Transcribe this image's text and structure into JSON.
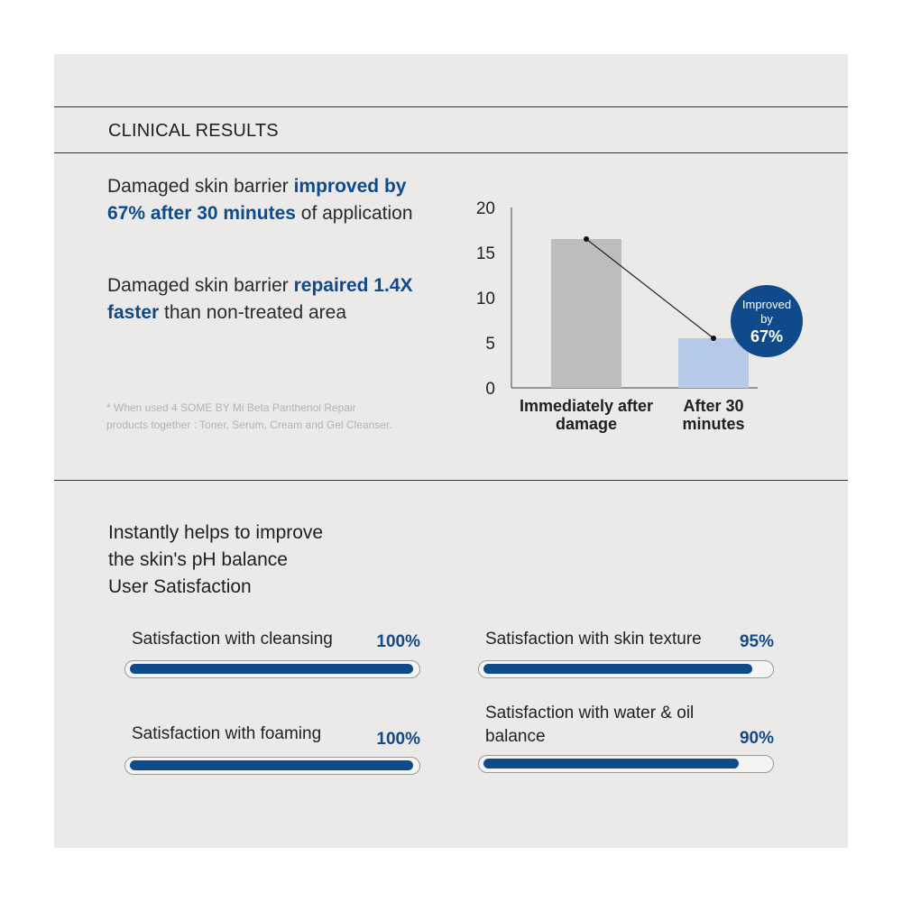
{
  "section_title": "CLINICAL RESULTS",
  "claims": [
    {
      "pre": "Damaged skin barrier ",
      "bold": "improved by 67% after 30 minutes",
      "post": " of application"
    },
    {
      "pre": "Damaged skin barrier ",
      "bold": "repaired 1.4X faster",
      "post": " than non-treated area"
    }
  ],
  "footnote": "* When used 4 SOME BY Mi Beta Panthenol Repair products together : Toner, Serum, Cream and Gel Cleanser.",
  "chart_data": {
    "type": "bar",
    "categories": [
      "Immediately after damage",
      "After 30 minutes"
    ],
    "values": [
      16.5,
      5.5
    ],
    "ylim": [
      0,
      20
    ],
    "yticks": [
      0,
      5,
      10,
      15,
      20
    ],
    "colors": [
      "#bdbdbd",
      "#b7c9e8"
    ],
    "connector_line": true,
    "badge": {
      "line1": "Improved",
      "line2": "by",
      "line3": "67%",
      "color": "#0f4b8a"
    },
    "grid": false,
    "title": "",
    "xlabel": "",
    "ylabel": ""
  },
  "satisfaction": {
    "heading_lines": [
      "Instantly helps to improve",
      "the skin's pH balance",
      "User Satisfaction"
    ],
    "items": [
      {
        "label": "Satisfaction with cleansing",
        "percent_text": "100%",
        "value": 100
      },
      {
        "label": "Satisfaction with skin texture",
        "percent_text": "95%",
        "value": 95
      },
      {
        "label": "Satisfaction with foaming",
        "percent_text": "100%",
        "value": 100
      },
      {
        "label": "Satisfaction with water & oil balance",
        "percent_text": "90%",
        "value": 90
      }
    ],
    "bar_color": "#0f4b8a"
  }
}
